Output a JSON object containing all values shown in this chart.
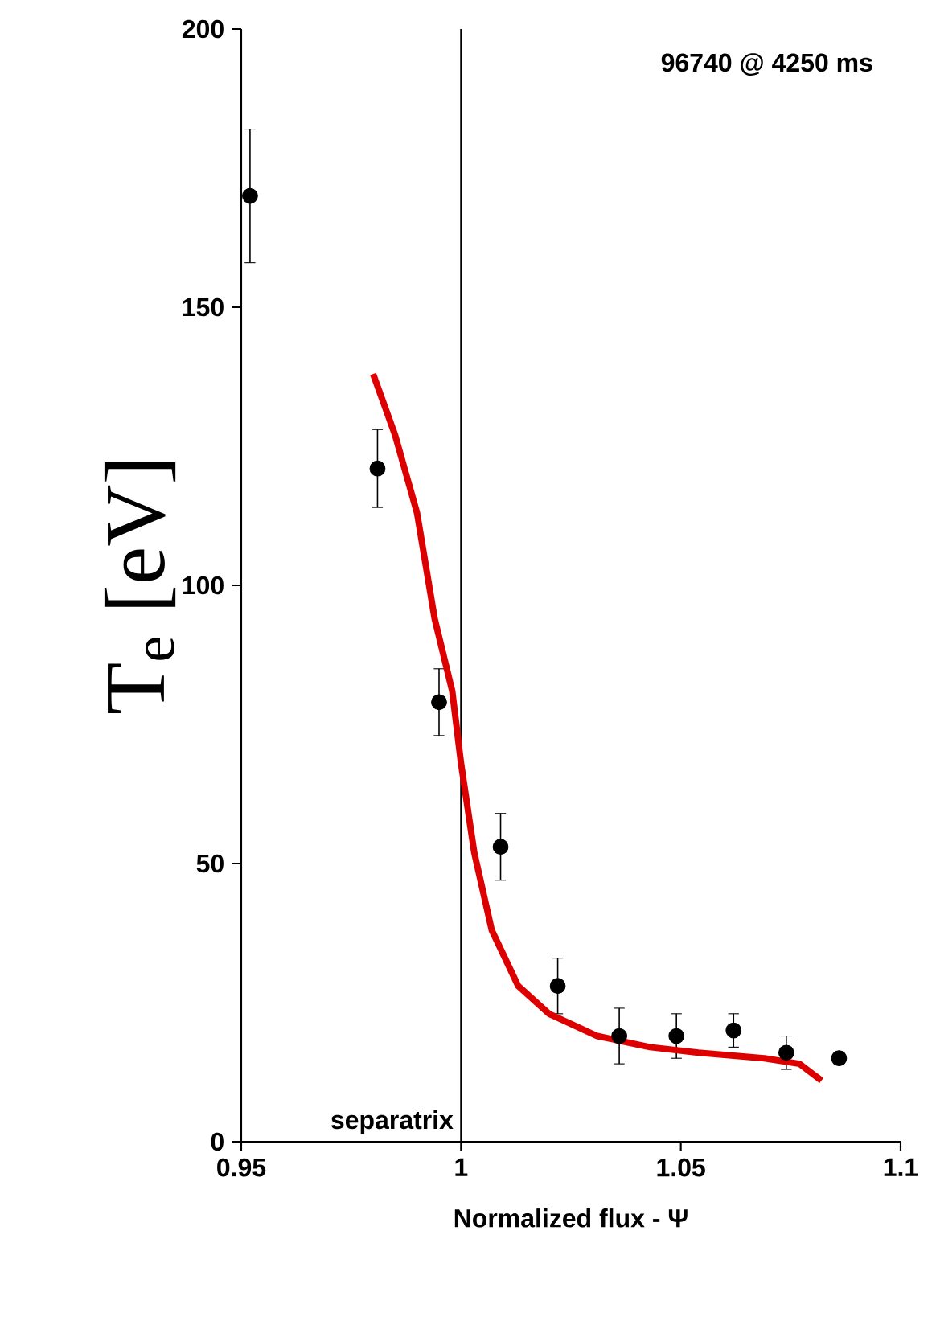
{
  "chart_data": {
    "type": "scatter",
    "xlabel": "Normalized flux - Ψ",
    "ylabel": "T$_{e}$ [eV]",
    "annotations": [
      "96740 @ 4250 ms"
    ],
    "xlim": [
      0.95,
      1.1
    ],
    "ylim": [
      0,
      200
    ],
    "xticks": [
      0.95,
      1,
      1.05,
      1.1
    ],
    "yticks": [
      0,
      50,
      100,
      150,
      200
    ],
    "ref_lines": [
      {
        "axis": "x",
        "value": 1,
        "label": "separatrix",
        "color": "#000000"
      }
    ],
    "series": [
      {
        "type": "scatter",
        "color": "#000000",
        "marker": "circle",
        "x": [
          0.952,
          0.981,
          0.995,
          1.009,
          1.022,
          1.036,
          1.049,
          1.062,
          1.074,
          1.086
        ],
        "values": [
          170,
          121,
          79,
          53,
          28,
          19,
          19,
          20,
          16,
          15
        ],
        "errors": [
          12,
          7,
          6,
          6,
          5,
          5,
          4,
          3,
          3,
          null
        ]
      },
      {
        "type": "line",
        "color": "#dd0000",
        "marker": "none",
        "x": [
          0.98,
          0.985,
          0.99,
          0.994,
          0.998,
          1.0,
          1.003,
          1.007,
          1.013,
          1.02,
          1.031,
          1.043,
          1.054,
          1.069,
          1.077,
          1.082
        ],
        "values": [
          138,
          127,
          113,
          94,
          81,
          68,
          52,
          38,
          28,
          23,
          19,
          17,
          16,
          15,
          14,
          11
        ]
      }
    ]
  }
}
